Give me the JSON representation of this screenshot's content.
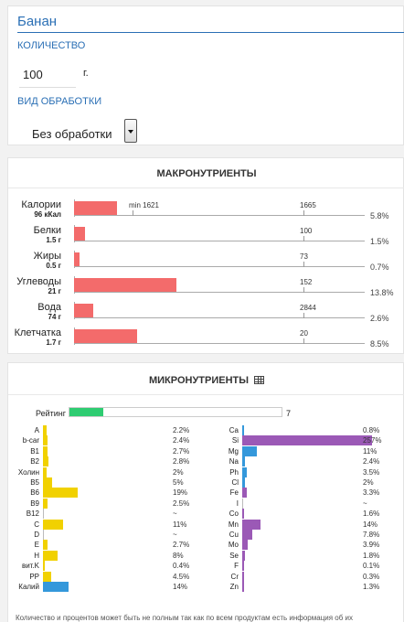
{
  "product": {
    "name": "Банан",
    "quantity_label": "КОЛИЧЕСТВО",
    "quantity_value": "100",
    "quantity_unit": "г.",
    "processing_label": "ВИД ОБРАБОТКИ",
    "processing_value": "Без обработки"
  },
  "macro": {
    "title": "МАКРОНУТРИЕНТЫ",
    "bar_color": "#f36b6b",
    "rows": [
      {
        "name": "Калории",
        "amount": "96 кКал",
        "fill": 0.058,
        "pct": "5.8%",
        "ticks": [
          {
            "label": "min 1621",
            "at": 0.2
          },
          {
            "label": "1665",
            "at": 0.79
          }
        ]
      },
      {
        "name": "Белки",
        "amount": "1.5 г",
        "fill": 0.015,
        "pct": "1.5%",
        "ticks": [
          {
            "label": "100",
            "at": 0.79
          }
        ]
      },
      {
        "name": "Жиры",
        "amount": "0.5 г",
        "fill": 0.007,
        "pct": "0.7%",
        "ticks": [
          {
            "label": "73",
            "at": 0.79
          }
        ]
      },
      {
        "name": "Углеводы",
        "amount": "21 г",
        "fill": 0.138,
        "pct": "13.8%",
        "ticks": [
          {
            "label": "152",
            "at": 0.79
          }
        ]
      },
      {
        "name": "Вода",
        "amount": "74 г",
        "fill": 0.026,
        "pct": "2.6%",
        "ticks": [
          {
            "label": "2844",
            "at": 0.79
          }
        ]
      },
      {
        "name": "Клетчатка",
        "amount": "1.7 г",
        "fill": 0.085,
        "pct": "8.5%",
        "ticks": [
          {
            "label": "20",
            "at": 0.79
          }
        ]
      }
    ]
  },
  "micro": {
    "title": "МИКРОНУТРИЕНТЫ",
    "rating_label": "Рейтинг",
    "rating_value": "7",
    "rating_fill": 0.07,
    "rating_color": "#2ecc71",
    "vitamin_color": "#f1d100",
    "mineral_color_purple": "#9b59b6",
    "mineral_color_blue": "#3498db",
    "vitamins": [
      {
        "name": "A",
        "pct": "2.2%",
        "fill": 0.022
      },
      {
        "name": "b-car",
        "pct": "2.4%",
        "fill": 0.024
      },
      {
        "name": "B1",
        "pct": "2.7%",
        "fill": 0.027
      },
      {
        "name": "B2",
        "pct": "2.8%",
        "fill": 0.028
      },
      {
        "name": "Холин",
        "pct": "2%",
        "fill": 0.02
      },
      {
        "name": "B5",
        "pct": "5%",
        "fill": 0.05
      },
      {
        "name": "B6",
        "pct": "19%",
        "fill": 0.19
      },
      {
        "name": "B9",
        "pct": "2.5%",
        "fill": 0.025
      },
      {
        "name": "B12",
        "pct": "~",
        "fill": 0
      },
      {
        "name": "C",
        "pct": "11%",
        "fill": 0.11
      },
      {
        "name": "D",
        "pct": "~",
        "fill": 0
      },
      {
        "name": "E",
        "pct": "2.7%",
        "fill": 0.027
      },
      {
        "name": "H",
        "pct": "8%",
        "fill": 0.08
      },
      {
        "name": "вит.K",
        "pct": "0.4%",
        "fill": 0.004
      },
      {
        "name": "PP",
        "pct": "4.5%",
        "fill": 0.045
      },
      {
        "name": "Калий",
        "pct": "14%",
        "fill": 0.14,
        "color": "blue"
      }
    ],
    "minerals": [
      {
        "name": "Ca",
        "pct": "0.8%",
        "fill": 0.008,
        "color": "blue"
      },
      {
        "name": "Si",
        "pct": "257%",
        "fill": 1.0,
        "color": "purple"
      },
      {
        "name": "Mg",
        "pct": "11%",
        "fill": 0.11,
        "color": "blue"
      },
      {
        "name": "Na",
        "pct": "2.4%",
        "fill": 0.024,
        "color": "blue"
      },
      {
        "name": "Ph",
        "pct": "3.5%",
        "fill": 0.035,
        "color": "blue"
      },
      {
        "name": "Cl",
        "pct": "2%",
        "fill": 0.02,
        "color": "blue"
      },
      {
        "name": "Fe",
        "pct": "3.3%",
        "fill": 0.033,
        "color": "purple"
      },
      {
        "name": "I",
        "pct": "~",
        "fill": 0,
        "color": "purple"
      },
      {
        "name": "Co",
        "pct": "1.6%",
        "fill": 0.016,
        "color": "purple"
      },
      {
        "name": "Mn",
        "pct": "14%",
        "fill": 0.14,
        "color": "purple"
      },
      {
        "name": "Cu",
        "pct": "7.8%",
        "fill": 0.078,
        "color": "purple"
      },
      {
        "name": "Mo",
        "pct": "3.9%",
        "fill": 0.039,
        "color": "purple"
      },
      {
        "name": "Se",
        "pct": "1.8%",
        "fill": 0.018,
        "color": "purple"
      },
      {
        "name": "F",
        "pct": "0.1%",
        "fill": 0.001,
        "color": "purple"
      },
      {
        "name": "Cr",
        "pct": "0.3%",
        "fill": 0.003,
        "color": "purple"
      },
      {
        "name": "Zn",
        "pct": "1.3%",
        "fill": 0.013,
        "color": "purple"
      }
    ],
    "footnote": "Количество и процентов может быть не полным так как по всем продуктам есть информация об их"
  }
}
